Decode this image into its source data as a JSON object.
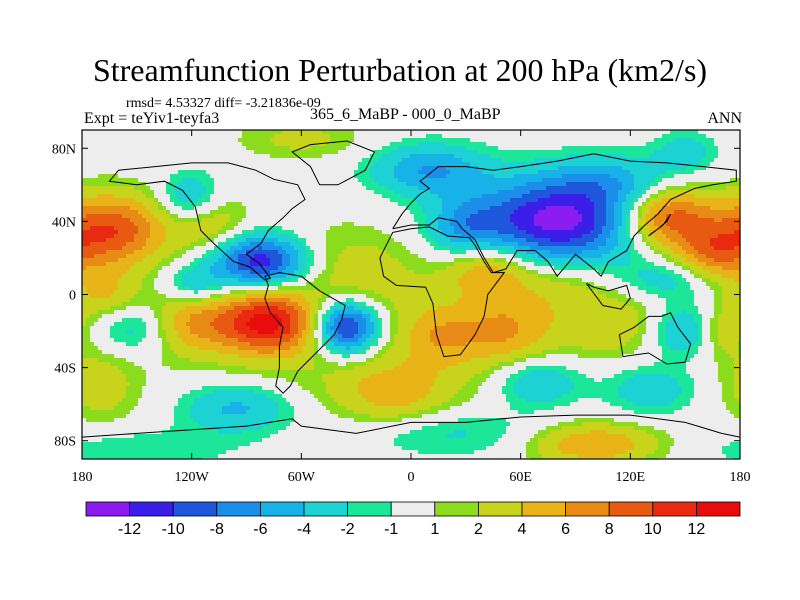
{
  "chart_data": {
    "type": "heatmap",
    "title": "Streamfunction Perturbation at 200 hPa (km2/s)",
    "stats_text": "rmsd= 4.53327  diff= -3.21836e-09",
    "left_label": "Expt = teYiv1-teyfa3",
    "center_label": "365_6_MaBP - 000_0_MaBP",
    "right_label": "ANN",
    "x_range": [
      -180,
      180
    ],
    "y_range": [
      -90,
      90
    ],
    "x_ticks": [
      {
        "value": -180,
        "label": "180"
      },
      {
        "value": -120,
        "label": "120W"
      },
      {
        "value": -60,
        "label": "60W"
      },
      {
        "value": 0,
        "label": "0"
      },
      {
        "value": 60,
        "label": "60E"
      },
      {
        "value": 120,
        "label": "120E"
      },
      {
        "value": 180,
        "label": "180"
      }
    ],
    "y_ticks": [
      {
        "value": 80,
        "label": "80N"
      },
      {
        "value": 40,
        "label": "40N"
      },
      {
        "value": 0,
        "label": "0"
      },
      {
        "value": -40,
        "label": "40S"
      },
      {
        "value": -80,
        "label": "80S"
      }
    ],
    "colorbar": {
      "levels": [
        "-12",
        "-10",
        "-8",
        "-6",
        "-4",
        "-2",
        "-1",
        "1",
        "2",
        "4",
        "6",
        "8",
        "10",
        "12"
      ],
      "colors": [
        "#8a1cf0",
        "#3a1ee8",
        "#1e56dc",
        "#1a8ee8",
        "#16b2e8",
        "#1cd2d2",
        "#1ce69a",
        "#ededed",
        "#8cdc1e",
        "#c8d41c",
        "#e8b418",
        "#e88a16",
        "#e85a12",
        "#e82a10",
        "#e80c0c"
      ]
    },
    "features": [
      {
        "lon": -165,
        "lat": 35,
        "amp": 10,
        "wx": 22,
        "wy": 14
      },
      {
        "lon": -168,
        "lat": 0,
        "amp": 4,
        "wx": 14,
        "wy": 10
      },
      {
        "lon": -110,
        "lat": 40,
        "amp": 4,
        "wx": 14,
        "wy": 12
      },
      {
        "lon": -120,
        "lat": 52,
        "amp": -5,
        "wx": 12,
        "wy": 10
      },
      {
        "lon": -82,
        "lat": 18,
        "amp": -12,
        "wx": 18,
        "wy": 10
      },
      {
        "lon": -118,
        "lat": 5,
        "amp": -4,
        "wx": 12,
        "wy": 8
      },
      {
        "lon": -78,
        "lat": -15,
        "amp": 12,
        "wx": 18,
        "wy": 12
      },
      {
        "lon": -120,
        "lat": -15,
        "amp": 6,
        "wx": 18,
        "wy": 12
      },
      {
        "lon": -150,
        "lat": -18,
        "amp": -4,
        "wx": 16,
        "wy": 10
      },
      {
        "lon": -35,
        "lat": -18,
        "amp": -12,
        "wx": 12,
        "wy": 10
      },
      {
        "lon": -40,
        "lat": 20,
        "amp": 2,
        "wx": 30,
        "wy": 16
      },
      {
        "lon": -20,
        "lat": 5,
        "amp": 1.6,
        "wx": 25,
        "wy": 14
      },
      {
        "lon": 30,
        "lat": 35,
        "amp": -5,
        "wx": 14,
        "wy": 12
      },
      {
        "lon": 10,
        "lat": 68,
        "amp": -6,
        "wx": 22,
        "wy": 10
      },
      {
        "lon": 80,
        "lat": 40,
        "amp": -13,
        "wx": 32,
        "wy": 16
      },
      {
        "lon": 110,
        "lat": 62,
        "amp": -4,
        "wx": 25,
        "wy": 10
      },
      {
        "lon": 40,
        "lat": 15,
        "amp": 6,
        "wx": 16,
        "wy": 12
      },
      {
        "lon": 75,
        "lat": 5,
        "amp": 3,
        "wx": 22,
        "wy": 12
      },
      {
        "lon": 140,
        "lat": 42,
        "amp": 10,
        "wx": 18,
        "wy": 12
      },
      {
        "lon": 165,
        "lat": 22,
        "amp": 6,
        "wx": 14,
        "wy": 10
      },
      {
        "lon": 140,
        "lat": 8,
        "amp": -3,
        "wx": 18,
        "wy": 8
      },
      {
        "lon": 50,
        "lat": -20,
        "amp": 5,
        "wx": 18,
        "wy": 12
      },
      {
        "lon": 110,
        "lat": -15,
        "amp": 3,
        "wx": 22,
        "wy": 12
      },
      {
        "lon": 150,
        "lat": -20,
        "amp": -5,
        "wx": 14,
        "wy": 10
      },
      {
        "lon": 170,
        "lat": -20,
        "amp": 4,
        "wx": 10,
        "wy": 10
      },
      {
        "lon": 15,
        "lat": -22,
        "amp": 4,
        "wx": 14,
        "wy": 12
      },
      {
        "lon": -10,
        "lat": -55,
        "amp": 4,
        "wx": 20,
        "wy": 12
      },
      {
        "lon": 70,
        "lat": -48,
        "amp": -5,
        "wx": 18,
        "wy": 10
      },
      {
        "lon": 130,
        "lat": -52,
        "amp": -4,
        "wx": 18,
        "wy": 10
      },
      {
        "lon": -170,
        "lat": -50,
        "amp": 3,
        "wx": 14,
        "wy": 14
      },
      {
        "lon": -95,
        "lat": -62,
        "amp": -5,
        "wx": 22,
        "wy": 10
      },
      {
        "lon": 20,
        "lat": -75,
        "amp": -3,
        "wx": 40,
        "wy": 10
      },
      {
        "lon": -150,
        "lat": -85,
        "amp": -2,
        "wx": 40,
        "wy": 8
      },
      {
        "lon": 100,
        "lat": -82,
        "amp": 6,
        "wx": 25,
        "wy": 8
      },
      {
        "lon": 0,
        "lat": -40,
        "amp": 2,
        "wx": 90,
        "wy": 25
      },
      {
        "lon": -60,
        "lat": 85,
        "amp": 2.5,
        "wx": 25,
        "wy": 8
      },
      {
        "lon": 150,
        "lat": 78,
        "amp": -3,
        "wx": 12,
        "wy": 8
      }
    ]
  }
}
